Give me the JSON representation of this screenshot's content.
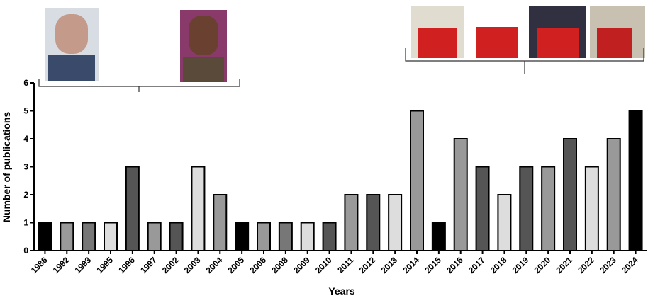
{
  "chart_data": {
    "type": "bar",
    "x_label": "Years",
    "y_label": "Number of publications",
    "categories": [
      "1986",
      "1992",
      "1993",
      "1995",
      "1996",
      "1997",
      "2002",
      "2003",
      "2004",
      "2005",
      "2006",
      "2008",
      "2009",
      "2010",
      "2011",
      "2012",
      "2013",
      "2014",
      "2015",
      "2016",
      "2017",
      "2018",
      "2019",
      "2020",
      "2021",
      "2022",
      "2023",
      "2024"
    ],
    "values": [
      1,
      1,
      1,
      1,
      3,
      1,
      1,
      3,
      2,
      1,
      1,
      1,
      1,
      1,
      2,
      2,
      2,
      5,
      1,
      4,
      3,
      2,
      3,
      3,
      4,
      3,
      4,
      5
    ],
    "colors": [
      "#000000",
      "#999999",
      "#777777",
      "#dddddd",
      "#555555",
      "#999999",
      "#555555",
      "#dddddd",
      "#999999",
      "#000000",
      "#999999",
      "#777777",
      "#dddddd",
      "#555555",
      "#999999",
      "#555555",
      "#dddddd",
      "#999999",
      "#000000",
      "#999999",
      "#555555",
      "#dddddd",
      "#555555",
      "#999999",
      "#555555",
      "#dddddd",
      "#999999",
      "#000000"
    ],
    "ylim": [
      0,
      6
    ],
    "yticks": [
      0,
      1,
      2,
      3,
      4,
      5,
      6
    ],
    "grid": false
  }
}
